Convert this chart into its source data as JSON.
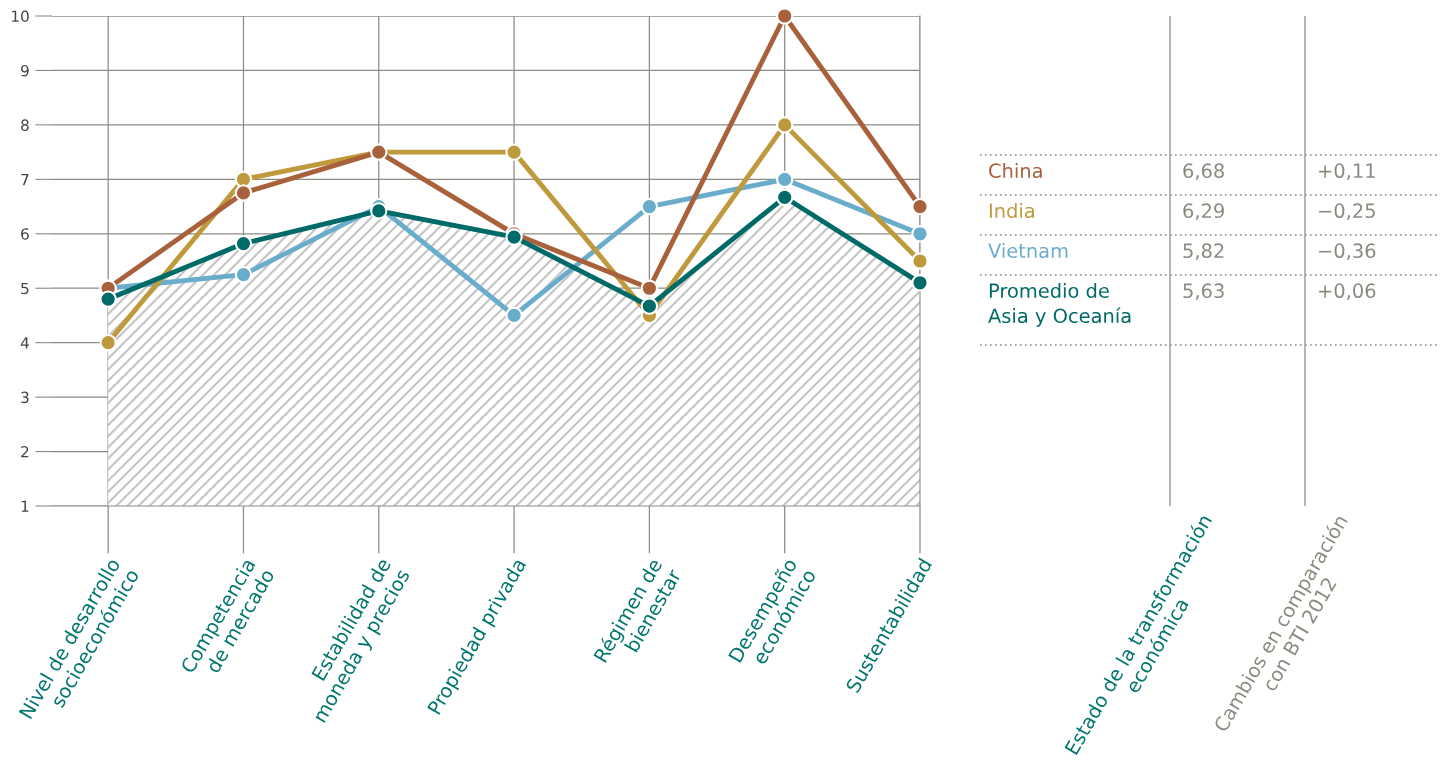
{
  "chart_data": [
    {
      "type": "line",
      "categories": [
        "Nivel de desarrollo\nsocioeconómico",
        "Competencia\nde mercado",
        "Estabilidad de\nmoneda y precios",
        "Propiedad privada",
        "Régimen de\nbienestar",
        "Desempeño\neconómico",
        "Sustentabilidad"
      ],
      "series": [
        {
          "color": "#006a68",
          "type": "area",
          "values": [
            4.8,
            5.82,
            6.42,
            5.94,
            4.67,
            6.67,
            5.1
          ]
        },
        {
          "color": "#a8613b",
          "values": [
            5,
            6.75,
            7.5,
            6,
            5,
            10,
            6.5
          ]
        },
        {
          "color": "#bf9a3c",
          "values": [
            4,
            7,
            7.5,
            7.5,
            4.5,
            8,
            5.5
          ]
        },
        {
          "color": "#6aaccb",
          "values": [
            5,
            5.25,
            6.5,
            4.5,
            6.5,
            7,
            6
          ]
        }
      ],
      "ylim": [
        1,
        10
      ],
      "yticks": [
        1,
        2,
        3,
        4,
        5,
        6,
        7,
        8,
        9,
        10
      ],
      "grid": true,
      "marker": "circle",
      "line_style": "solid"
    },
    {
      "type": "other",
      "categories": [
        "China",
        "India",
        "Vietnam",
        "Promedio de\nAsia y Oceanía"
      ],
      "colors": [
        "#a8613b",
        "#bf9a3c",
        "#6aaccb",
        "#006a68"
      ],
      "series": [
        {
          "name": "Estado de la transformación\neconómica",
          "values": [
            6.68,
            6.29,
            5.82,
            5.63
          ],
          "value_labels": [
            "6,68",
            "6,29",
            "5,82",
            "5,63"
          ]
        },
        {
          "name": "Cambios en comparación\ncon BTI 2012",
          "values": [
            0.11,
            -0.25,
            -0.36,
            0.06
          ],
          "value_labels": [
            "+0,11",
            "−0,25",
            "−0,36",
            "+0,06"
          ]
        }
      ]
    }
  ]
}
